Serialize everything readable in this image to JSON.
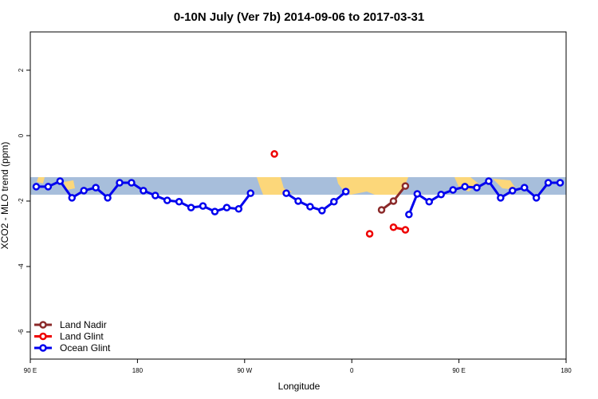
{
  "chart_data": {
    "type": "line",
    "title": "0-10N July (Ver 7b)   2014-09-06 to 2017-03-31",
    "x_label": "Longitude",
    "y_label": "XCO2 - MLO trend (ppm)",
    "xlim": [
      90,
      540
    ],
    "xticks": [
      {
        "value": 90,
        "label": "90 E"
      },
      180,
      {
        "value": 270,
        "label": "90 W"
      },
      {
        "value": 360,
        "label": "0"
      },
      {
        "value": 450,
        "label": "90 E"
      },
      {
        "value": 540,
        "label": "180"
      }
    ],
    "ylim": [
      -6.83,
      3.17
    ],
    "yticks": [
      -6,
      -4,
      -2,
      0,
      2
    ],
    "legend": "bottom-left",
    "series": [
      {
        "name": "Land Nadir",
        "color": "#8b2a2a",
        "x": [
          385,
          395,
          405
        ],
        "values": [
          -2.27,
          -2.0,
          -1.54
        ]
      },
      {
        "name": "Land Glint",
        "color": "#ee0000",
        "x": [
          295,
          305,
          375,
          385,
          395,
          405
        ],
        "values": [
          -0.56,
          null,
          -3.0,
          null,
          -2.8,
          -2.88
        ]
      },
      {
        "name": "Ocean Glint",
        "color": "#0000ee",
        "x": [
          95,
          105,
          115,
          125,
          135,
          145,
          155,
          165,
          175,
          185,
          195,
          205,
          215,
          225,
          235,
          245,
          255,
          265,
          275,
          290,
          305,
          315,
          325,
          335,
          345,
          355,
          380,
          408,
          415,
          425,
          435,
          445,
          455,
          465,
          475,
          485,
          495,
          505,
          515,
          525,
          535
        ],
        "values": [
          -1.56,
          -1.56,
          -1.39,
          -1.9,
          -1.68,
          -1.59,
          -1.9,
          -1.44,
          -1.44,
          -1.68,
          -1.83,
          -1.98,
          -2.02,
          -2.2,
          -2.15,
          -2.32,
          -2.2,
          -2.24,
          -1.76,
          null,
          -1.76,
          -2.0,
          -2.17,
          -2.29,
          -2.02,
          -1.71,
          null,
          -2.41,
          -1.78,
          -2.02,
          -1.8,
          -1.66,
          -1.56,
          -1.59,
          -1.39,
          -1.9,
          -1.68,
          -1.59,
          -1.9,
          -1.44,
          -1.44
        ]
      }
    ]
  }
}
